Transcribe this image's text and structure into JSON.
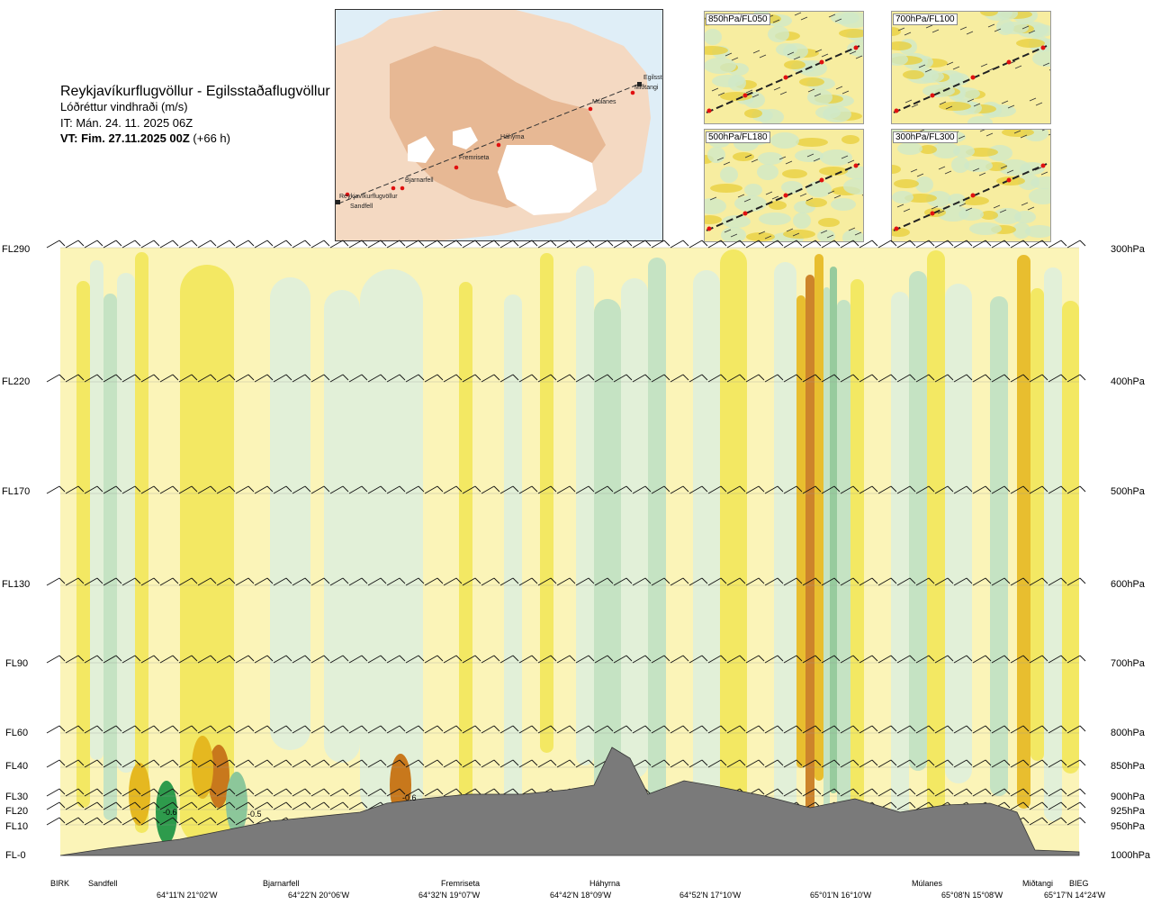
{
  "header": {
    "title": "Reykjavíkurflugvöllur - Egilsstaðaflugvöllur",
    "quantity": "Lóðréttur vindhraði (m/s)",
    "issue_time": "IT: Mán. 24. 11. 2025 06Z",
    "valid_time_bold": "VT: Fim. 27.11.2025 00Z",
    "valid_time_offset": " (+66 h)"
  },
  "map": {
    "stations": [
      "Reykjavíkurflugvöllur",
      "Sandfell",
      "Bjarnarfell",
      "Fremriseta",
      "Háhyrna",
      "Múlanes",
      "Miðtangi",
      "Egilsstaðir"
    ]
  },
  "panels": [
    {
      "label": "850hPa/FL050"
    },
    {
      "label": "700hPa/FL100"
    },
    {
      "label": "500hPa/FL180"
    },
    {
      "label": "300hPa/FL300"
    }
  ],
  "chart_data": {
    "type": "heatmap",
    "quantity": "Lóðréttur vindhraði (m/s)",
    "y_left_flight_levels": [
      "FL290",
      "FL220",
      "FL170",
      "FL130",
      "FL90",
      "FL60",
      "FL40",
      "FL30",
      "FL20",
      "FL10",
      "FL-0"
    ],
    "y_right_pressure_levels": [
      "300hPa",
      "400hPa",
      "500hPa",
      "600hPa",
      "700hPa",
      "800hPa",
      "850hPa",
      "900hPa",
      "925hPa",
      "950hPa",
      "1000hPa"
    ],
    "x_locations": [
      "BIRK",
      "Sandfell",
      "Bjarnarfell",
      "Fremriseta",
      "Háhyrna",
      "Múlanes",
      "Miðtangi",
      "BIEG"
    ],
    "x_coordinates": [
      "64°11'N 21°02'W",
      "64°22'N 20°06'W",
      "64°32'N 19°07'W",
      "64°42'N 18°09'W",
      "64°52'N 17°10'W",
      "65°01'N 16°10'W",
      "65°08'N 15°08'W",
      "65°17'N 14°24'W"
    ],
    "contour_labels": [
      "-0.6",
      "-0.5",
      "-0.6"
    ],
    "colors": {
      "up_light": "#fbf4b8",
      "up_mid": "#f2e75a",
      "up_strong": "#e5b820",
      "up_max": "#c8781c",
      "down_light": "#dff0dc",
      "down_mid": "#bfe1c4",
      "down_strong": "#8cc79a",
      "down_max": "#2e9b4c",
      "terrain": "#7a7a7a"
    }
  }
}
